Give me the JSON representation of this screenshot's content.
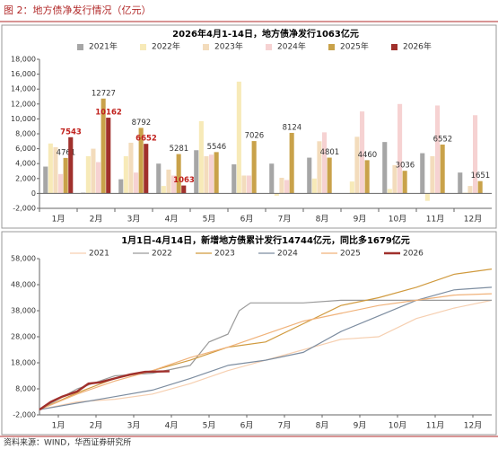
{
  "header": {
    "title": "图 2：地方债净发行情况（亿元）"
  },
  "source": "资料来源：WIND，华西证券研究所",
  "chart_data": [
    {
      "type": "bar",
      "title": "2026年4月1-14日，地方债净发行1063亿元",
      "legend": "top",
      "grid": false,
      "categories": [
        "1月",
        "2月",
        "3月",
        "4月",
        "5月",
        "6月",
        "7月",
        "8月",
        "9月",
        "10月",
        "11月",
        "12月"
      ],
      "ylim": [
        -2000,
        18000
      ],
      "yticks": [
        {
          "value": -2000,
          "label": "-2,000"
        },
        0,
        {
          "value": 2000,
          "label": "2,000"
        },
        {
          "value": 4000,
          "label": "4,000"
        },
        {
          "value": 6000,
          "label": "6,000"
        },
        {
          "value": 8000,
          "label": "8,000"
        },
        {
          "value": 10000,
          "label": "10,000"
        },
        {
          "value": 12000,
          "label": "12,000"
        },
        {
          "value": 14000,
          "label": "14,000"
        },
        {
          "value": 16000,
          "label": "16,000"
        },
        {
          "value": 18000,
          "label": "18,000"
        }
      ],
      "series": [
        {
          "name": "2021年",
          "color": "#a6a6a6",
          "values": [
            3600,
            100,
            1900,
            4000,
            5800,
            3900,
            4000,
            4800,
            0,
            6900,
            5400,
            2800
          ]
        },
        {
          "name": "2022年",
          "color": "#f7eab8",
          "values": [
            6700,
            5000,
            5000,
            1000,
            9700,
            15000,
            -300,
            2000,
            1600,
            600,
            -1000,
            100
          ]
        },
        {
          "name": "2023年",
          "color": "#f3dcbc",
          "values": [
            6200,
            6000,
            6800,
            3200,
            5000,
            2400,
            2100,
            7000,
            7600,
            3800,
            5000,
            1000
          ]
        },
        {
          "name": "2024年",
          "color": "#f6d2d2",
          "values": [
            2600,
            4200,
            2800,
            2400,
            5200,
            2400,
            1800,
            8200,
            11000,
            12000,
            11800,
            10500
          ]
        },
        {
          "name": "2025年",
          "color": "#c9a24a",
          "data_labels": true,
          "label_color": "#333333",
          "values": [
            4761,
            12727,
            8792,
            5281,
            5546,
            7026,
            8124,
            4801,
            4460,
            3036,
            6552,
            1651
          ]
        },
        {
          "name": "2026年",
          "color": "#a0302c",
          "data_labels": true,
          "label_color": "#c0201c",
          "values": [
            7543,
            10162,
            6652,
            1063,
            null,
            null,
            null,
            null,
            null,
            null,
            null,
            null
          ]
        }
      ]
    },
    {
      "type": "line",
      "title": "1月1日-4月14日，新增地方债累计发行14744亿元，同比多1679亿元",
      "legend": "top",
      "xlim": [
        1,
        13
      ],
      "xticks": [
        {
          "value": 1.5,
          "label": "1月"
        },
        {
          "value": 2.5,
          "label": "2月"
        },
        {
          "value": 3.5,
          "label": "3月"
        },
        {
          "value": 4.5,
          "label": "4月"
        },
        {
          "value": 5.5,
          "label": "5月"
        },
        {
          "value": 6.5,
          "label": "6月"
        },
        {
          "value": 7.5,
          "label": "7月"
        },
        {
          "value": 8.5,
          "label": "8月"
        },
        {
          "value": 9.5,
          "label": "9月"
        },
        {
          "value": 10.5,
          "label": "10月"
        },
        {
          "value": 11.5,
          "label": "11月"
        },
        {
          "value": 12.5,
          "label": "12月"
        }
      ],
      "ylim": [
        -2000,
        58000
      ],
      "yticks": [
        {
          "value": -2000,
          "label": "-2,000"
        },
        {
          "value": 8000,
          "label": "8,000"
        },
        {
          "value": 18000,
          "label": "18,000"
        },
        {
          "value": 28000,
          "label": "28,000"
        },
        {
          "value": 38000,
          "label": "38,000"
        },
        {
          "value": 48000,
          "label": "48,000"
        },
        {
          "value": 58000,
          "label": "58,000"
        }
      ],
      "series": [
        {
          "name": "2021",
          "color": "#f6cfb0",
          "width": 1.2,
          "x": [
            1,
            2,
            3,
            4,
            5,
            6,
            7,
            8,
            9,
            10,
            11,
            12,
            13
          ],
          "values": [
            0,
            3000,
            4000,
            6000,
            10000,
            15000,
            19000,
            23000,
            27000,
            28000,
            35000,
            39000,
            42000
          ]
        },
        {
          "name": "2022",
          "color": "#9a9a9a",
          "width": 1.2,
          "x": [
            1,
            2,
            3,
            4,
            5,
            5.5,
            6,
            6.3,
            6.6,
            7,
            8,
            9,
            10,
            11,
            12,
            13
          ],
          "values": [
            0,
            8000,
            13000,
            14000,
            17000,
            26000,
            29000,
            38000,
            41000,
            41000,
            41000,
            42000,
            42000,
            42000,
            42000,
            42000
          ]
        },
        {
          "name": "2023",
          "color": "#d09a3e",
          "width": 1.2,
          "x": [
            1,
            2,
            3,
            4,
            5,
            6,
            7,
            8,
            9,
            10,
            11,
            12,
            13
          ],
          "values": [
            0,
            6500,
            12000,
            15000,
            19000,
            24000,
            26000,
            33000,
            40000,
            43000,
            47000,
            52000,
            54000
          ]
        },
        {
          "name": "2024",
          "color": "#7d8da0",
          "width": 1.2,
          "x": [
            1,
            2,
            3,
            4,
            5,
            6,
            7,
            8,
            9,
            10,
            11,
            12,
            13
          ],
          "values": [
            0,
            2500,
            5000,
            7500,
            12000,
            17000,
            19000,
            22000,
            30000,
            36000,
            42000,
            46000,
            47000
          ]
        },
        {
          "name": "2025",
          "color": "#f0b27a",
          "width": 1.2,
          "x": [
            1,
            2,
            3,
            4,
            5,
            6,
            7,
            8,
            9,
            10,
            11,
            12,
            13
          ],
          "values": [
            0,
            6000,
            11000,
            15000,
            20000,
            24000,
            29000,
            34000,
            37000,
            40000,
            42000,
            44000,
            44500
          ]
        },
        {
          "name": "2026",
          "color": "#a0302c",
          "width": 2.4,
          "x": [
            1,
            1.3,
            1.6,
            2,
            2.3,
            2.6,
            3,
            3.4,
            3.8,
            4.45
          ],
          "values": [
            0,
            3000,
            5000,
            7000,
            10000,
            10500,
            12000,
            13500,
            14500,
            14744
          ]
        }
      ]
    }
  ]
}
